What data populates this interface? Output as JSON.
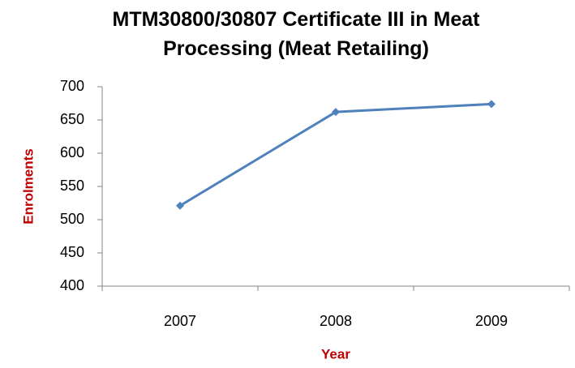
{
  "chart_data": {
    "type": "line",
    "title": "MTM30800/30807 Certificate III in Meat Processing (Meat Retailing)",
    "x_label": "Year",
    "y_label": "Enrolments",
    "categories": [
      "2007",
      "2008",
      "2009"
    ],
    "series": [
      {
        "name": "Enrolments",
        "color": "#4f81bd",
        "values": [
          521,
          662,
          674
        ]
      }
    ],
    "ylim": [
      400,
      700
    ],
    "yticks": [
      400,
      450,
      500,
      550,
      600,
      650,
      700
    ],
    "grid": false
  }
}
